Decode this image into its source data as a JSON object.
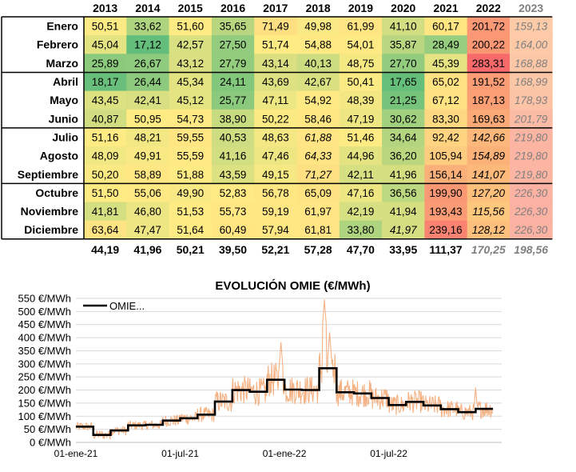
{
  "chart_data": [
    {
      "type": "heatmap",
      "columns": [
        "2013",
        "2014",
        "2015",
        "2016",
        "2017",
        "2018",
        "2019",
        "2020",
        "2021",
        "2022",
        "2023"
      ],
      "rows": [
        "Enero",
        "Febrero",
        "Marzo",
        "Abril",
        "Mayo",
        "Junio",
        "Julio",
        "Agosto",
        "Septiembre",
        "Octubre",
        "Noviembre",
        "Diciembre"
      ],
      "values": [
        [
          "50,51",
          "33,62",
          "51,60",
          "35,65",
          "71,49",
          "49,98",
          "61,99",
          "41,10",
          "60,17",
          "201,72",
          "159,13"
        ],
        [
          "45,04",
          "17,12",
          "42,57",
          "27,50",
          "51,74",
          "54,88",
          "54,01",
          "35,87",
          "28,49",
          "200,22",
          "164,00"
        ],
        [
          "25,89",
          "26,67",
          "43,12",
          "27,79",
          "43,14",
          "40,13",
          "48,75",
          "27,70",
          "45,39",
          "283,31",
          "168,88"
        ],
        [
          "18,17",
          "26,44",
          "45,34",
          "24,11",
          "43,69",
          "42,67",
          "50,41",
          "17,65",
          "65,02",
          "191,52",
          "168,99"
        ],
        [
          "43,45",
          "42,41",
          "45,12",
          "25,77",
          "47,11",
          "54,92",
          "48,39",
          "21,25",
          "67,12",
          "187,13",
          "178,93"
        ],
        [
          "40,87",
          "50,95",
          "54,73",
          "38,90",
          "50,22",
          "58,46",
          "47,19",
          "30,62",
          "83,30",
          "169,63",
          "201,79"
        ],
        [
          "51,16",
          "48,21",
          "59,55",
          "40,53",
          "48,63",
          "61,88",
          "51,46",
          "34,64",
          "92,42",
          "142,66",
          "219,80"
        ],
        [
          "48,09",
          "49,91",
          "55,59",
          "41,16",
          "47,46",
          "64,33",
          "44,96",
          "36,20",
          "105,94",
          "154,89",
          "219,80"
        ],
        [
          "50,20",
          "58,89",
          "51,88",
          "43,59",
          "49,15",
          "71,27",
          "42,11",
          "41,96",
          "156,14",
          "141,07",
          "219,80"
        ],
        [
          "51,50",
          "55,06",
          "49,90",
          "52,83",
          "56,78",
          "65,09",
          "47,16",
          "36,56",
          "199,90",
          "127,20",
          "226,30"
        ],
        [
          "41,81",
          "46,80",
          "51,53",
          "55,73",
          "59,19",
          "61,97",
          "42,19",
          "41,94",
          "193,43",
          "115,56",
          "226,30"
        ],
        [
          "63,64",
          "47,47",
          "51,64",
          "60,49",
          "57,94",
          "61,81",
          "33,80",
          "41,97",
          "239,16",
          "128,12",
          "226,30"
        ]
      ],
      "italic_cells": [
        [
          6,
          5
        ],
        [
          7,
          5
        ],
        [
          8,
          5
        ],
        [
          11,
          7
        ],
        [
          6,
          9
        ],
        [
          7,
          9
        ],
        [
          8,
          9
        ],
        [
          9,
          9
        ],
        [
          10,
          9
        ],
        [
          11,
          9
        ]
      ],
      "totals": [
        "44,19",
        "41,96",
        "50,21",
        "39,50",
        "52,21",
        "57,28",
        "47,70",
        "33,95",
        "111,37",
        "170,25",
        "198,56"
      ],
      "future_column": "2023",
      "colors": {
        "low": "#63be7b",
        "mid": "#ffeb84",
        "high": "#f8696b",
        "future_text": "#7f7f7f"
      }
    },
    {
      "type": "line",
      "title": "EVOLUCIÓN OMIE (€/MWh)",
      "y_ticks": [
        "0 €/MWh",
        "50 €/MWh",
        "100 €/MWh",
        "150 €/MWh",
        "200 €/MWh",
        "250 €/MWh",
        "300 €/MWh",
        "350 €/MWh",
        "400 €/MWh",
        "450 €/MWh",
        "500 €/MWh",
        "550 €/MWh"
      ],
      "ylim": [
        0,
        550
      ],
      "x_ticks": [
        "01-ene-21",
        "01-jul-21",
        "01-ene-22",
        "01-jul-22"
      ],
      "x_tick_month_index": [
        0,
        6,
        12,
        18
      ],
      "xlim_months": [
        0,
        24.5
      ],
      "grid": true,
      "legend": {
        "position": "top-left",
        "label": "OMIE..."
      },
      "series": [
        {
          "name": "OMIE...",
          "style": "step",
          "color": "#000000",
          "values": [
            60.17,
            28.49,
            45.39,
            65.02,
            67.12,
            83.3,
            92.42,
            105.94,
            156.14,
            199.9,
            193.43,
            239.16,
            201.72,
            200.22,
            283.31,
            191.52,
            187.13,
            169.63,
            142.66,
            154.89,
            141.07,
            127.2,
            115.56,
            128.12
          ]
        },
        {
          "style": "daily",
          "color": "#f4b183",
          "peaks": [
            {
              "month": 11.8,
              "value": 383
            },
            {
              "month": 14.3,
              "value": 545
            },
            {
              "month": 14.6,
              "value": 420
            },
            {
              "month": 23.0,
              "value": 210
            }
          ]
        }
      ]
    }
  ]
}
